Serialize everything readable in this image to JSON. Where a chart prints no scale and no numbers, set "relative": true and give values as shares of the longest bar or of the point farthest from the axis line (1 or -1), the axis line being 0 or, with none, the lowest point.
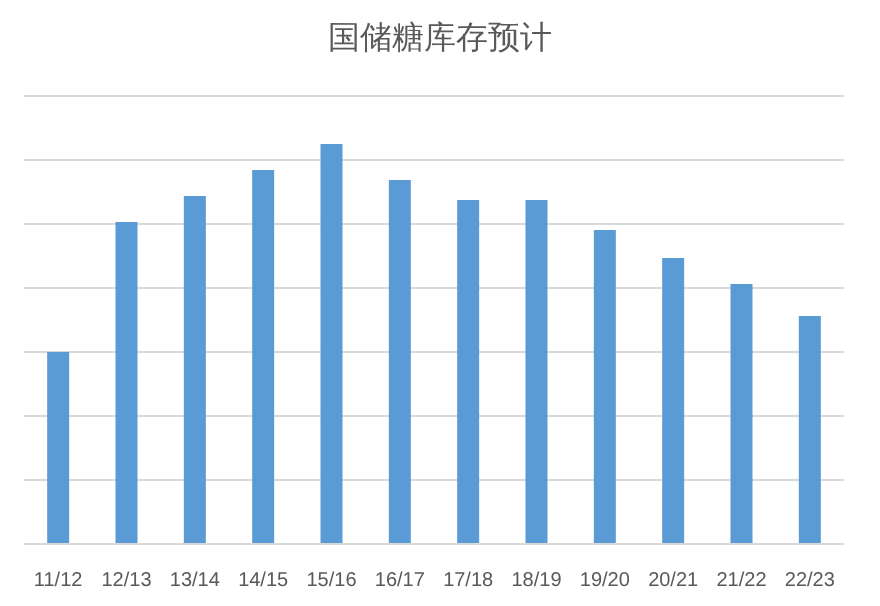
{
  "chart_data": {
    "type": "bar",
    "title": "国储糖库存预计",
    "relative": true,
    "grid": "y",
    "categories": [
      "11/12",
      "12/13",
      "13/14",
      "14/15",
      "15/16",
      "16/17",
      "17/18",
      "18/19",
      "19/20",
      "20/21",
      "21/22",
      "22/23"
    ],
    "values": [
      0.48,
      0.805,
      0.87,
      0.935,
      1,
      0.91,
      0.86,
      0.86,
      0.785,
      0.715,
      0.65,
      0.57
    ],
    "color": "#5b9bd5"
  }
}
